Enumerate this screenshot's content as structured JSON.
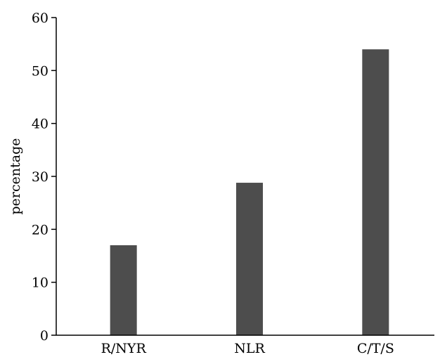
{
  "chart_data": {
    "type": "bar",
    "title": "",
    "xlabel": "",
    "ylabel": "percentage",
    "categories": [
      "R/NYR",
      "NLR",
      "C/T/S"
    ],
    "values": [
      17,
      28.8,
      54
    ],
    "ylim": [
      0,
      60
    ],
    "yticks": [
      0,
      10,
      20,
      30,
      40,
      50,
      60
    ],
    "ytick_labels": [
      "0",
      "10",
      "20",
      "30",
      "40",
      "50",
      "60"
    ],
    "grid": false,
    "legend": "none",
    "bar_color": "#4d4d4d",
    "axis_color": "#000000"
  }
}
